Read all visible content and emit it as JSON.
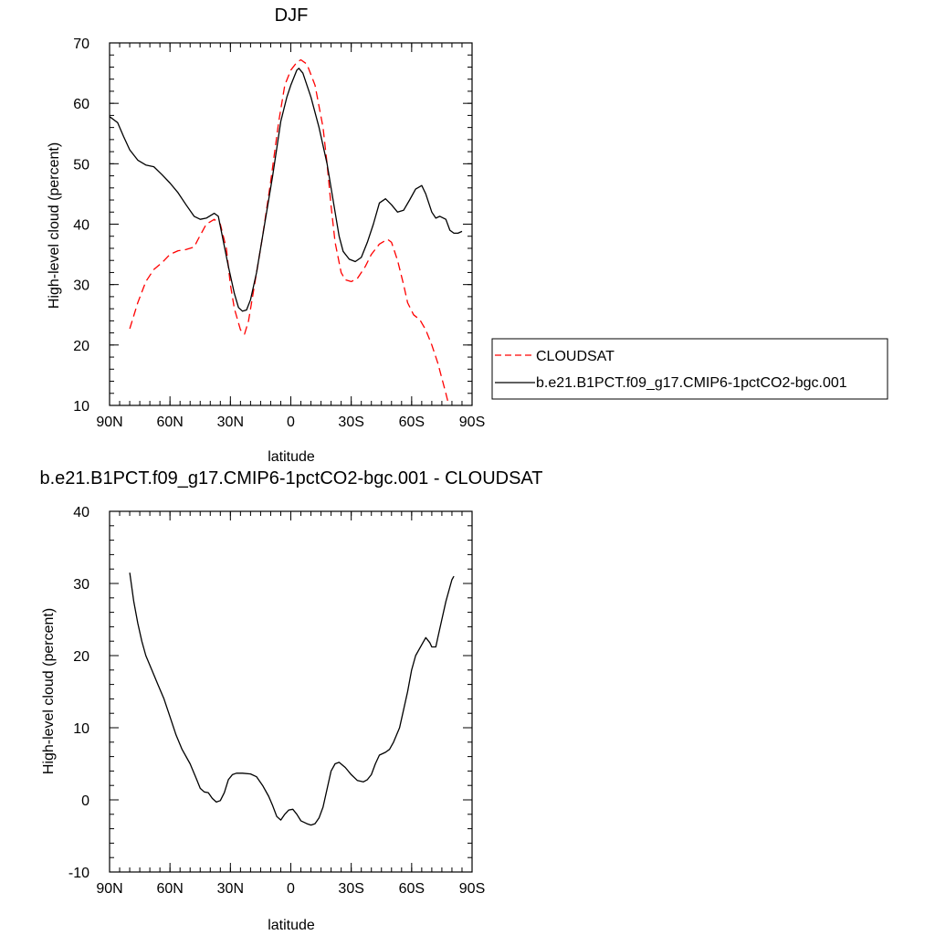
{
  "chart_data": [
    {
      "type": "line",
      "title": "DJF",
      "xlabel": "latitude",
      "ylabel": "High-level cloud (percent)",
      "xlim": [
        -90,
        90
      ],
      "ylim": [
        10,
        70
      ],
      "x_reversed": true,
      "xticks": [
        {
          "value": -90,
          "label": "90N"
        },
        {
          "value": -60,
          "label": "60N"
        },
        {
          "value": -30,
          "label": "30N"
        },
        {
          "value": 0,
          "label": "0"
        },
        {
          "value": 30,
          "label": "30S"
        },
        {
          "value": 60,
          "label": "60S"
        },
        {
          "value": 90,
          "label": "90S"
        }
      ],
      "yticks": [
        10,
        20,
        30,
        40,
        50,
        60,
        70
      ],
      "legend_position": "right",
      "series": [
        {
          "name": "CLOUDSAT",
          "color": "#ff0000",
          "dash": "dashed",
          "points": [
            [
              -80,
              22.7
            ],
            [
              -76,
              27
            ],
            [
              -72,
              30.5
            ],
            [
              -68,
              32.5
            ],
            [
              -64,
              33.6
            ],
            [
              -60,
              35
            ],
            [
              -56,
              35.6
            ],
            [
              -52,
              35.8
            ],
            [
              -48,
              36.2
            ],
            [
              -46,
              37.5
            ],
            [
              -42,
              40
            ],
            [
              -38,
              40.8
            ],
            [
              -35,
              40
            ],
            [
              -32,
              36
            ],
            [
              -30,
              30
            ],
            [
              -28,
              26
            ],
            [
              -25,
              22.5
            ],
            [
              -23,
              21.8
            ],
            [
              -21,
              24
            ],
            [
              -18,
              30
            ],
            [
              -14,
              38
            ],
            [
              -10,
              47
            ],
            [
              -6,
              57
            ],
            [
              -3,
              63
            ],
            [
              0,
              65.5
            ],
            [
              3,
              66.8
            ],
            [
              5,
              67.2
            ],
            [
              8,
              66.5
            ],
            [
              12,
              63
            ],
            [
              16,
              56
            ],
            [
              18,
              50
            ],
            [
              20,
              43
            ],
            [
              22,
              37
            ],
            [
              25,
              32
            ],
            [
              27,
              30.8
            ],
            [
              30,
              30.5
            ],
            [
              33,
              31
            ],
            [
              37,
              33
            ],
            [
              40,
              35
            ],
            [
              44,
              36.7
            ],
            [
              48,
              37.5
            ],
            [
              50,
              37
            ],
            [
              53,
              34
            ],
            [
              56,
              30
            ],
            [
              58,
              27
            ],
            [
              61,
              25
            ],
            [
              64,
              24.2
            ],
            [
              67,
              22.5
            ],
            [
              70,
              20
            ],
            [
              73,
              17
            ],
            [
              75,
              14.5
            ],
            [
              77,
              12
            ],
            [
              78.5,
              10
            ]
          ]
        },
        {
          "name": "b.e21.B1PCT.f09_g17.CMIP6-1pctCO2-bgc.001",
          "color": "#000000",
          "dash": "solid",
          "points": [
            [
              -90,
              57.8
            ],
            [
              -86,
              56.8
            ],
            [
              -83,
              54.5
            ],
            [
              -80,
              52.3
            ],
            [
              -76,
              50.6
            ],
            [
              -72,
              49.8
            ],
            [
              -68,
              49.5
            ],
            [
              -64,
              48.2
            ],
            [
              -60,
              46.8
            ],
            [
              -56,
              45.2
            ],
            [
              -52,
              43.2
            ],
            [
              -48,
              41.3
            ],
            [
              -45,
              40.8
            ],
            [
              -42,
              41
            ],
            [
              -38,
              41.8
            ],
            [
              -36,
              41.3
            ],
            [
              -34,
              38
            ],
            [
              -31,
              33
            ],
            [
              -28,
              28.5
            ],
            [
              -26,
              26.2
            ],
            [
              -24,
              25.6
            ],
            [
              -22,
              25.8
            ],
            [
              -20,
              27.5
            ],
            [
              -17,
              32
            ],
            [
              -13,
              40
            ],
            [
              -9,
              48
            ],
            [
              -5,
              57
            ],
            [
              -2,
              61
            ],
            [
              0,
              63
            ],
            [
              3,
              65.5
            ],
            [
              4,
              65.8
            ],
            [
              6,
              65
            ],
            [
              10,
              61
            ],
            [
              14,
              56
            ],
            [
              18,
              50
            ],
            [
              20,
              46
            ],
            [
              22,
              42
            ],
            [
              24,
              38
            ],
            [
              26,
              35.5
            ],
            [
              29,
              34.2
            ],
            [
              32,
              33.8
            ],
            [
              35,
              34.5
            ],
            [
              38,
              37
            ],
            [
              41,
              40
            ],
            [
              44,
              43.5
            ],
            [
              47,
              44.2
            ],
            [
              50,
              43.2
            ],
            [
              53,
              42
            ],
            [
              56,
              42.3
            ],
            [
              59,
              44
            ],
            [
              62,
              45.8
            ],
            [
              65,
              46.4
            ],
            [
              67,
              45
            ],
            [
              70,
              42
            ],
            [
              72,
              41
            ],
            [
              74,
              41.3
            ],
            [
              77,
              40.8
            ],
            [
              79,
              39
            ],
            [
              81,
              38.5
            ],
            [
              83,
              38.5
            ],
            [
              85,
              38.8
            ]
          ]
        }
      ]
    },
    {
      "type": "line",
      "title": "b.e21.B1PCT.f09_g17.CMIP6-1pctCO2-bgc.001 - CLOUDSAT",
      "xlabel": "latitude",
      "ylabel": "High-level cloud (percent)",
      "xlim": [
        -90,
        90
      ],
      "ylim": [
        -10,
        40
      ],
      "x_reversed": true,
      "xticks": [
        {
          "value": -90,
          "label": "90N"
        },
        {
          "value": -60,
          "label": "60N"
        },
        {
          "value": -30,
          "label": "30N"
        },
        {
          "value": 0,
          "label": "0"
        },
        {
          "value": 30,
          "label": "30S"
        },
        {
          "value": 60,
          "label": "60S"
        },
        {
          "value": 90,
          "label": "90S"
        }
      ],
      "yticks": [
        -10,
        0,
        10,
        20,
        30,
        40
      ],
      "series": [
        {
          "color": "#000000",
          "dash": "solid",
          "points": [
            [
              -80,
              31.5
            ],
            [
              -78,
              27.5
            ],
            [
              -76,
              24.5
            ],
            [
              -74,
              22
            ],
            [
              -72,
              20
            ],
            [
              -69,
              18
            ],
            [
              -66,
              16
            ],
            [
              -63,
              14
            ],
            [
              -60,
              11.5
            ],
            [
              -57,
              9
            ],
            [
              -54,
              7
            ],
            [
              -50,
              5
            ],
            [
              -47,
              3
            ],
            [
              -45,
              1.6
            ],
            [
              -43,
              1.1
            ],
            [
              -41,
              1
            ],
            [
              -39,
              0.2
            ],
            [
              -37,
              -0.3
            ],
            [
              -35,
              -0.1
            ],
            [
              -33,
              1
            ],
            [
              -31,
              2.8
            ],
            [
              -29,
              3.5
            ],
            [
              -27,
              3.7
            ],
            [
              -24,
              3.7
            ],
            [
              -20,
              3.6
            ],
            [
              -17,
              3.2
            ],
            [
              -14,
              2
            ],
            [
              -11,
              0.5
            ],
            [
              -9,
              -0.8
            ],
            [
              -7,
              -2.3
            ],
            [
              -5,
              -2.8
            ],
            [
              -3,
              -2
            ],
            [
              -1,
              -1.4
            ],
            [
              1,
              -1.3
            ],
            [
              3,
              -2
            ],
            [
              5,
              -2.9
            ],
            [
              8,
              -3.3
            ],
            [
              10,
              -3.5
            ],
            [
              12,
              -3.3
            ],
            [
              14,
              -2.5
            ],
            [
              16,
              -1
            ],
            [
              18,
              1.5
            ],
            [
              20,
              4
            ],
            [
              22,
              5
            ],
            [
              24,
              5.2
            ],
            [
              27,
              4.5
            ],
            [
              30,
              3.5
            ],
            [
              33,
              2.7
            ],
            [
              36,
              2.5
            ],
            [
              38,
              2.8
            ],
            [
              40,
              3.5
            ],
            [
              42,
              5
            ],
            [
              44,
              6.2
            ],
            [
              47,
              6.6
            ],
            [
              49,
              7
            ],
            [
              51,
              8
            ],
            [
              54,
              10
            ],
            [
              56,
              12.5
            ],
            [
              58,
              15
            ],
            [
              60,
              18
            ],
            [
              62,
              20
            ],
            [
              65,
              21.5
            ],
            [
              67,
              22.5
            ],
            [
              69,
              21.8
            ],
            [
              70,
              21.2
            ],
            [
              72,
              21.2
            ],
            [
              73,
              22.5
            ],
            [
              75,
              25
            ],
            [
              77,
              27.5
            ],
            [
              80,
              30.5
            ],
            [
              81,
              31
            ]
          ]
        }
      ]
    }
  ]
}
